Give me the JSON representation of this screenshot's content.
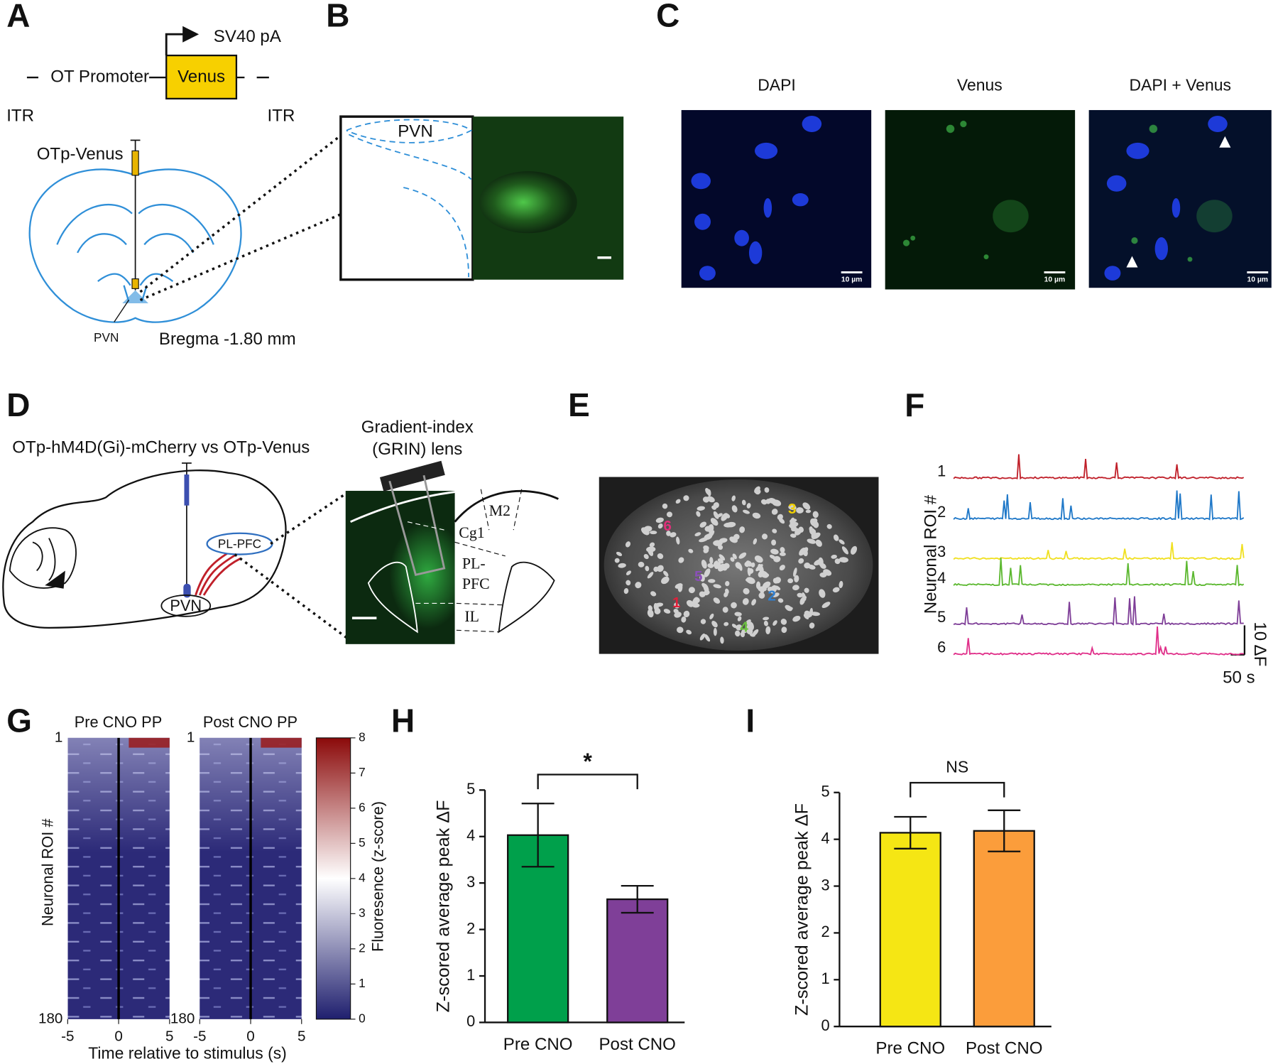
{
  "panel_labels": [
    "A",
    "B",
    "C",
    "D",
    "E",
    "F",
    "G",
    "H",
    "I"
  ],
  "panel_a": {
    "terminator": "SV40 pA",
    "promoter": "OT Promoter",
    "gene": "Venus",
    "itr_left": "ITR",
    "itr_right": "ITR",
    "injection": "OTp-Venus",
    "region": "PVN",
    "bregma": "Bregma -1.80 mm"
  },
  "panel_b": {
    "region": "PVN"
  },
  "panel_c": {
    "channels": [
      "DAPI",
      "Venus",
      "DAPI + Venus"
    ],
    "scale_bar": "10 µm"
  },
  "panel_d": {
    "virus": "OTp-hM4D(Gi)-mCherry vs OTp-Venus",
    "lens": [
      "Gradient-index",
      "(GRIN) lens"
    ],
    "target": "PL-PFC",
    "source": "PVN",
    "areas": [
      "M2",
      "Cg1",
      "PL-",
      "PFC",
      "IL"
    ]
  },
  "panel_e": {
    "rois": [
      "1",
      "2",
      "3",
      "4",
      "5",
      "6"
    ]
  },
  "panel_f": {
    "y_label": "Neuronal ROI #",
    "rois": [
      "1",
      "2",
      "3",
      "4",
      "5",
      "6"
    ],
    "scale_y": "10 ΔF",
    "scale_x": "50 s"
  },
  "chart_data": [
    {
      "type": "heatmap",
      "titles": [
        "Pre CNO PP",
        "Post CNO PP"
      ],
      "x_label": "Time relative to stimulus (s)",
      "y_label": "Neuronal  ROI #",
      "xlim": [
        -5,
        5
      ],
      "xticks": [
        -5,
        0,
        5
      ],
      "ylim": [
        1,
        180
      ],
      "yticks": [
        1,
        180
      ],
      "colorbar_label": "Fluoresence (z-score)",
      "clim": [
        0,
        8
      ],
      "cticks": [
        0,
        1,
        2,
        3,
        4,
        5,
        6,
        7,
        8
      ]
    },
    {
      "type": "bar",
      "y_label": "Z-scored average peak ΔF",
      "annotation": "*",
      "categories": [
        "Pre CNO",
        "Post CNO"
      ],
      "values": [
        4.03,
        2.65
      ],
      "errors": [
        0.68,
        0.29
      ],
      "colors": [
        "#00a04b",
        "#7f3f98"
      ],
      "ylim": [
        0,
        5
      ],
      "yticks": [
        0,
        1,
        2,
        3,
        4,
        5
      ]
    },
    {
      "type": "bar",
      "y_label": "Z-scored average peak ΔF",
      "annotation": "NS",
      "categories": [
        "Pre CNO",
        "Post CNO"
      ],
      "values": [
        4.14,
        4.18
      ],
      "errors": [
        0.34,
        0.44
      ],
      "colors": [
        "#f5e614",
        "#fb9d3b"
      ],
      "ylim": [
        0,
        5
      ],
      "yticks": [
        0,
        1,
        2,
        3,
        4,
        5
      ]
    }
  ]
}
